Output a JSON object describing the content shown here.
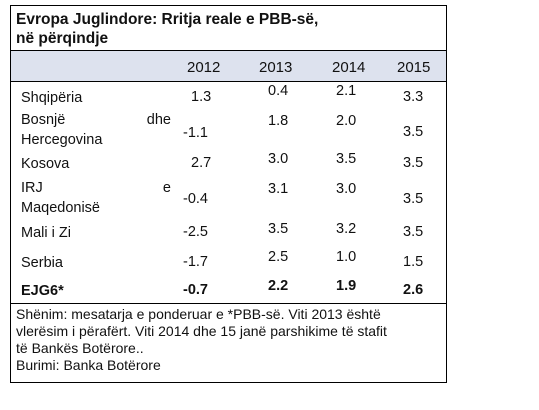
{
  "table": {
    "title_line1": "Evropa Juglindore: Rritja reale e PBB-së,",
    "title_line2": "në përqindje",
    "years": [
      "2012",
      "2013",
      "2014",
      "2015"
    ],
    "rows": [
      {
        "label": "Shqipëria",
        "values": [
          "1.3",
          "0.4",
          "2.1",
          "3.3"
        ]
      },
      {
        "label_a": "Bosnjë",
        "label_b": "dhe",
        "label_c": "Hercegovina",
        "values": [
          "-1.1",
          "1.8",
          "2.0",
          "3.5"
        ]
      },
      {
        "label": "Kosova",
        "values": [
          "2.7",
          "3.0",
          "3.5",
          "3.5"
        ]
      },
      {
        "label_a": "IRJ",
        "label_b": "e",
        "label_c": "Maqedonisë",
        "values": [
          "-0.4",
          "3.1",
          "3.0",
          "3.5"
        ]
      },
      {
        "label": "Mali i Zi",
        "values": [
          "-2.5",
          "3.5",
          "3.2",
          "3.5"
        ]
      },
      {
        "label": "Serbia",
        "values": [
          "-1.7",
          "2.5",
          "1.0",
          "1.5"
        ]
      }
    ],
    "total": {
      "label": "EJG6*",
      "values": [
        "-0.7",
        "2.2",
        "1.9",
        "2.6"
      ]
    },
    "note_line1": "Shënim: mesatarja e ponderuar e *PBB-së. Viti 2013 është",
    "note_line2": "vlerësim i përafërt. Viti 2014 dhe 15 janë parshikime të stafit",
    "note_line3": "të Bankës Botërore..",
    "source": "Burimi: Banka Botërore"
  }
}
